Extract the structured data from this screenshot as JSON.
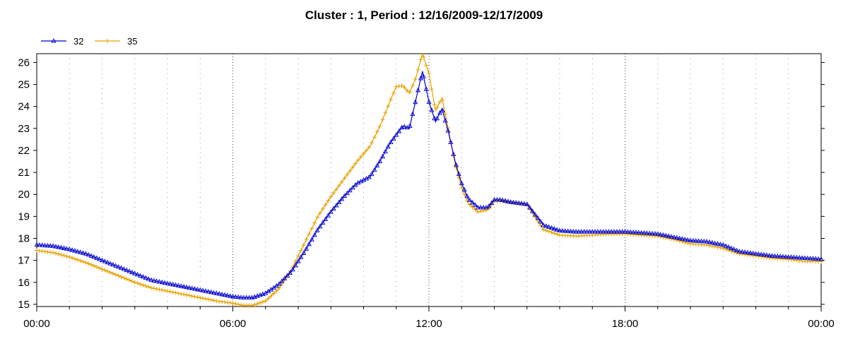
{
  "chart_data": {
    "type": "line",
    "title": "Cluster : 1, Period : 12/16/2009-12/17/2009",
    "xlabel": "",
    "ylabel": "",
    "x_unit": "hours since 00:00",
    "xlim": [
      0,
      24
    ],
    "ylim": [
      14.9,
      26.4
    ],
    "x_tick_labels": [
      "00:00",
      "06:00",
      "12:00",
      "18:00",
      "00:00"
    ],
    "y_ticks": [
      15,
      16,
      17,
      18,
      19,
      20,
      21,
      22,
      23,
      24,
      25,
      26
    ],
    "grid": "dotted vertical lines every hour, bold dotted at 06:00, 12:00, 18:00",
    "legend_position": "top-left",
    "series": [
      {
        "name": "32",
        "color": "#0000cc",
        "marker": "triangle",
        "x": [
          0,
          0.5,
          1,
          1.5,
          2,
          2.5,
          3,
          3.5,
          4,
          4.5,
          5,
          5.5,
          6,
          6.3,
          6.6,
          7,
          7.4,
          7.8,
          8.2,
          8.6,
          9,
          9.4,
          9.8,
          10.2,
          10.5,
          10.8,
          11,
          11.2,
          11.4,
          11.6,
          11.8,
          12,
          12.2,
          12.4,
          12.6,
          12.8,
          13,
          13.2,
          13.5,
          13.8,
          14,
          14.2,
          14.5,
          15,
          15.5,
          16,
          16.5,
          17,
          17.5,
          18,
          18.5,
          19,
          19.5,
          20,
          20.5,
          21,
          21.5,
          22,
          22.5,
          23,
          23.5,
          24
        ],
        "values": [
          17.7,
          17.65,
          17.5,
          17.3,
          17.0,
          16.7,
          16.4,
          16.1,
          15.95,
          15.8,
          15.65,
          15.5,
          15.35,
          15.3,
          15.3,
          15.5,
          15.9,
          16.5,
          17.4,
          18.4,
          19.2,
          19.9,
          20.5,
          20.8,
          21.5,
          22.3,
          22.7,
          23.1,
          23.0,
          24.3,
          25.6,
          24.2,
          23.3,
          23.9,
          22.8,
          21.5,
          20.5,
          19.8,
          19.4,
          19.4,
          19.75,
          19.75,
          19.65,
          19.55,
          18.6,
          18.35,
          18.3,
          18.3,
          18.3,
          18.3,
          18.25,
          18.2,
          18.05,
          17.9,
          17.85,
          17.7,
          17.4,
          17.3,
          17.2,
          17.15,
          17.1,
          17.05
        ]
      },
      {
        "name": "35",
        "color": "#e8a000",
        "marker": "plus",
        "x": [
          0,
          0.5,
          1,
          1.5,
          2,
          2.5,
          3,
          3.5,
          4,
          4.5,
          5,
          5.5,
          6,
          6.3,
          6.6,
          7,
          7.4,
          7.8,
          8.2,
          8.6,
          9,
          9.4,
          9.8,
          10.2,
          10.5,
          10.8,
          11,
          11.2,
          11.4,
          11.6,
          11.8,
          12,
          12.2,
          12.4,
          12.6,
          12.8,
          13,
          13.2,
          13.5,
          13.8,
          14,
          14.2,
          14.5,
          15,
          15.5,
          16,
          16.5,
          17,
          17.5,
          18,
          18.5,
          19,
          19.5,
          20,
          20.5,
          21,
          21.5,
          22,
          22.5,
          23,
          23.5,
          24
        ],
        "values": [
          17.45,
          17.35,
          17.15,
          16.9,
          16.6,
          16.3,
          16.0,
          15.75,
          15.6,
          15.45,
          15.3,
          15.15,
          15.05,
          14.95,
          14.95,
          15.15,
          15.7,
          16.6,
          17.8,
          19.0,
          19.9,
          20.7,
          21.5,
          22.2,
          23.1,
          24.2,
          24.9,
          24.95,
          24.6,
          25.3,
          26.4,
          25.5,
          23.8,
          24.4,
          22.9,
          21.4,
          20.3,
          19.6,
          19.2,
          19.3,
          19.7,
          19.7,
          19.65,
          19.55,
          18.4,
          18.15,
          18.1,
          18.15,
          18.2,
          18.2,
          18.15,
          18.1,
          17.95,
          17.75,
          17.7,
          17.55,
          17.3,
          17.2,
          17.1,
          17.05,
          16.95,
          16.95
        ]
      }
    ]
  }
}
